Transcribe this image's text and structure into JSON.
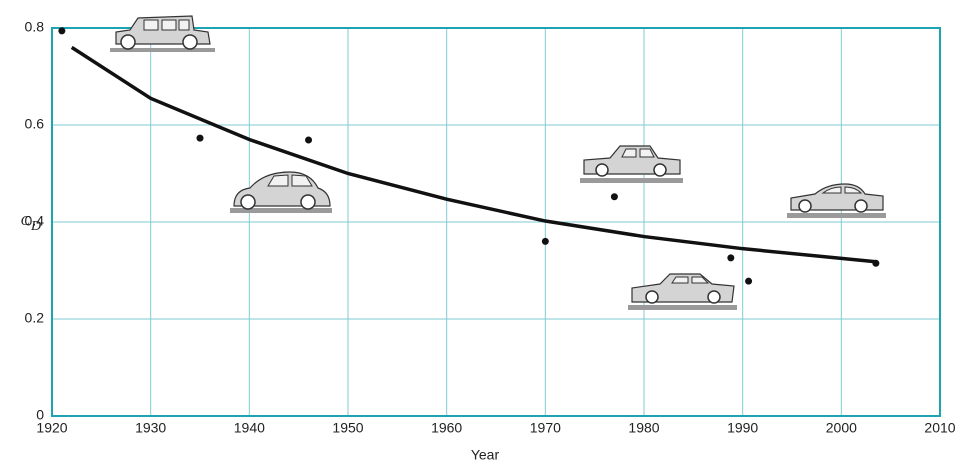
{
  "chart_data": {
    "type": "scatter",
    "ylabel": {
      "main": "C",
      "sub": "D"
    },
    "xlabel": "Year",
    "xlim": [
      1920,
      2010
    ],
    "xticks": [
      1920,
      1930,
      1940,
      1950,
      1960,
      1970,
      1980,
      1990,
      2000,
      2010
    ],
    "ylim": [
      0,
      0.8
    ],
    "yticks": [
      0,
      0.2,
      0.4,
      0.6,
      0.8
    ],
    "grid": true,
    "grid_color": "#7fcbd4",
    "frame_color": "#1ea3b3",
    "series": [
      {
        "mode": "markers",
        "color": "#111111",
        "x": [
          1921,
          1935,
          1946,
          1970,
          1977,
          1988.8,
          1990.6,
          2003.5
        ],
        "values": [
          0.794,
          0.573,
          0.569,
          0.36,
          0.452,
          0.326,
          0.278,
          0.315
        ]
      },
      {
        "mode": "line",
        "color": "#111111",
        "x": [
          1922,
          1930,
          1940,
          1950,
          1960,
          1970,
          1980,
          1990,
          2000,
          2003.5
        ],
        "values": [
          0.76,
          0.655,
          0.57,
          0.5,
          0.447,
          0.402,
          0.37,
          0.345,
          0.325,
          0.318
        ]
      }
    ]
  }
}
